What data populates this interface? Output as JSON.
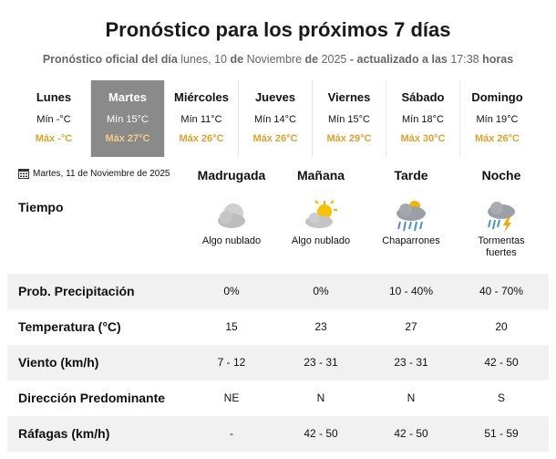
{
  "header": {
    "title": "Pronóstico para los próximos 7 días",
    "subtitle": [
      {
        "text": "Pronóstico oficial del día",
        "bold": true
      },
      {
        "text": "lunes, 10",
        "bold": false
      },
      {
        "text": "de",
        "bold": true
      },
      {
        "text": "Noviembre",
        "bold": false
      },
      {
        "text": "de",
        "bold": true
      },
      {
        "text": "2025",
        "bold": false
      },
      {
        "text": "- actualizado a las",
        "bold": true
      },
      {
        "text": "17:38",
        "bold": false
      },
      {
        "text": "horas",
        "bold": true
      }
    ]
  },
  "days": [
    {
      "name": "Lunes",
      "min": "Mín -°C",
      "max": "Máx -°C"
    },
    {
      "name": "Martes",
      "min": "Mín 15°C",
      "max": "Máx 27°C"
    },
    {
      "name": "Miércoles",
      "min": "Mín 11°C",
      "max": "Máx 26°C"
    },
    {
      "name": "Jueves",
      "min": "Mín 14°C",
      "max": "Máx 26°C"
    },
    {
      "name": "Viernes",
      "min": "Mín 15°C",
      "max": "Máx 29°C"
    },
    {
      "name": "Sábado",
      "min": "Mín 18°C",
      "max": "Máx 30°C"
    },
    {
      "name": "Domingo",
      "min": "Mín 19°C",
      "max": "Máx 26°C"
    }
  ],
  "selected_day": 1,
  "forecast": {
    "date": "Martes, 11 de Noviembre de 2025",
    "weather_label": "Tiempo",
    "periods": [
      {
        "name": "Madrugada",
        "condition": "Algo nublado"
      },
      {
        "name": "Mañana",
        "condition": "Algo nublado"
      },
      {
        "name": "Tarde",
        "condition": "Chaparrones"
      },
      {
        "name": "Noche",
        "condition": "Tormentas fuertes"
      }
    ],
    "rows": [
      {
        "label": "Prob. Precipitación",
        "values": [
          "0%",
          "0%",
          "10 - 40%",
          "40 - 70%"
        ]
      },
      {
        "label": "Temperatura (°C)",
        "values": [
          "15",
          "23",
          "27",
          "20"
        ]
      },
      {
        "label": "Viento (km/h)",
        "values": [
          "7 - 12",
          "23 - 31",
          "23 - 31",
          "42 - 50"
        ]
      },
      {
        "label": "Dirección Predominante",
        "values": [
          "NE",
          "N",
          "N",
          "S"
        ]
      },
      {
        "label": "Ráfagas (km/h)",
        "values": [
          "-",
          "42 - 50",
          "42 - 50",
          "51 - 59"
        ]
      }
    ]
  }
}
